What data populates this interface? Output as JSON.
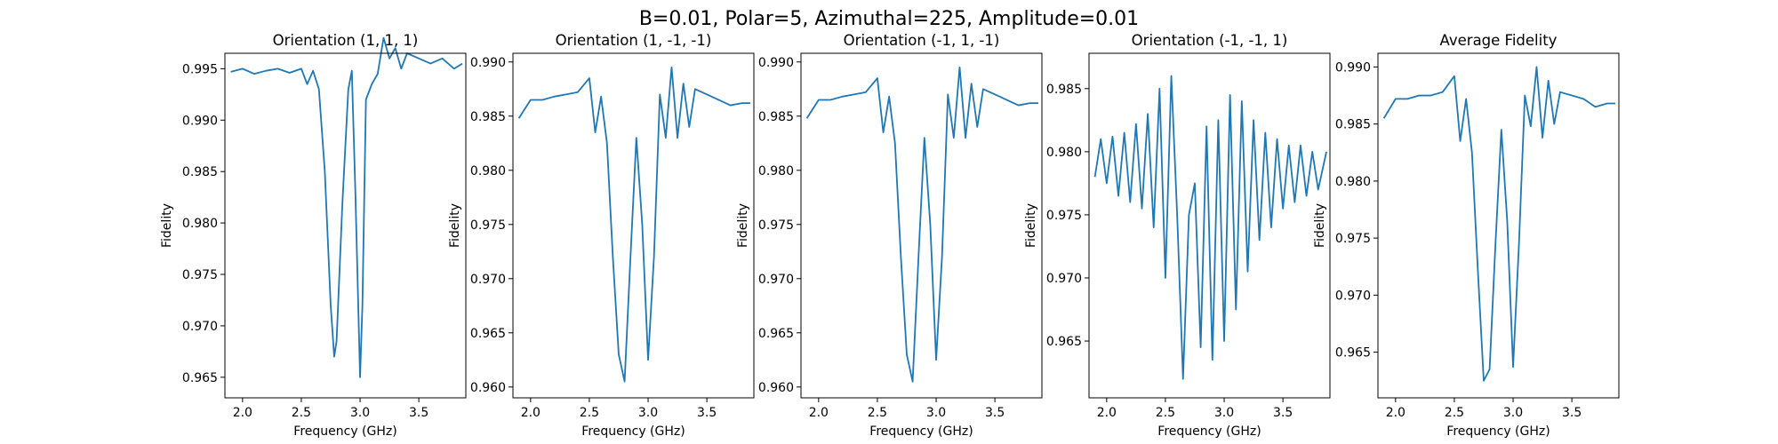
{
  "figure": {
    "title": "B=0.01, Polar=5, Azimuthal=225, Amplitude=0.01"
  },
  "colors": {
    "line": "#1f77b4",
    "axes": "#000000",
    "background": "#ffffff"
  },
  "chart_data": [
    {
      "type": "line",
      "title": "Orientation (1, 1, 1)",
      "xlabel": "Frequency (GHz)",
      "ylabel": "Fidelity",
      "xlim": [
        1.85,
        3.9
      ],
      "ylim": [
        0.963,
        0.9965
      ],
      "xticks": [
        2.0,
        2.5,
        3.0,
        3.5
      ],
      "xtick_labels": [
        "2.0",
        "2.5",
        "3.0",
        "3.5"
      ],
      "yticks": [
        0.965,
        0.97,
        0.975,
        0.98,
        0.985,
        0.99,
        0.995
      ],
      "ytick_labels": [
        "0.965",
        "0.970",
        "0.975",
        "0.980",
        "0.985",
        "0.990",
        "0.995"
      ],
      "grid": false,
      "series": [
        {
          "x": [
            1.9,
            2.0,
            2.1,
            2.2,
            2.3,
            2.4,
            2.5,
            2.55,
            2.6,
            2.65,
            2.7,
            2.75,
            2.78,
            2.8,
            2.85,
            2.9,
            2.93,
            2.96,
            3.0,
            3.02,
            3.05,
            3.1,
            3.15,
            3.2,
            3.25,
            3.3,
            3.35,
            3.4,
            3.5,
            3.6,
            3.7,
            3.8,
            3.87
          ],
          "y": [
            0.9947,
            0.995,
            0.9945,
            0.9948,
            0.995,
            0.9946,
            0.995,
            0.9935,
            0.9948,
            0.993,
            0.985,
            0.972,
            0.967,
            0.9685,
            0.982,
            0.993,
            0.9948,
            0.983,
            0.965,
            0.972,
            0.992,
            0.9935,
            0.9945,
            0.998,
            0.996,
            0.997,
            0.995,
            0.9965,
            0.996,
            0.9955,
            0.996,
            0.995,
            0.9955
          ]
        }
      ]
    },
    {
      "type": "line",
      "title": "Orientation (1, -1, -1)",
      "xlabel": "Frequency (GHz)",
      "ylabel": "Fidelity",
      "xlim": [
        1.85,
        3.9
      ],
      "ylim": [
        0.959,
        0.9908
      ],
      "xticks": [
        2.0,
        2.5,
        3.0,
        3.5
      ],
      "xtick_labels": [
        "2.0",
        "2.5",
        "3.0",
        "3.5"
      ],
      "yticks": [
        0.96,
        0.965,
        0.97,
        0.975,
        0.98,
        0.985,
        0.99
      ],
      "ytick_labels": [
        "0.960",
        "0.965",
        "0.970",
        "0.975",
        "0.980",
        "0.985",
        "0.990"
      ],
      "grid": false,
      "series": [
        {
          "x": [
            1.9,
            2.0,
            2.1,
            2.2,
            2.3,
            2.4,
            2.5,
            2.55,
            2.6,
            2.65,
            2.7,
            2.75,
            2.8,
            2.85,
            2.9,
            2.95,
            3.0,
            3.05,
            3.1,
            3.15,
            3.2,
            3.25,
            3.3,
            3.35,
            3.4,
            3.5,
            3.6,
            3.7,
            3.8,
            3.87
          ],
          "y": [
            0.9848,
            0.9865,
            0.9865,
            0.9868,
            0.987,
            0.9872,
            0.9885,
            0.9835,
            0.9868,
            0.9825,
            0.972,
            0.963,
            0.9605,
            0.972,
            0.983,
            0.975,
            0.9625,
            0.972,
            0.987,
            0.983,
            0.9895,
            0.983,
            0.988,
            0.984,
            0.9875,
            0.987,
            0.9865,
            0.986,
            0.9862,
            0.9862
          ]
        }
      ]
    },
    {
      "type": "line",
      "title": "Orientation (-1, 1, -1)",
      "xlabel": "Frequency (GHz)",
      "ylabel": "Fidelity",
      "xlim": [
        1.85,
        3.9
      ],
      "ylim": [
        0.959,
        0.9908
      ],
      "xticks": [
        2.0,
        2.5,
        3.0,
        3.5
      ],
      "xtick_labels": [
        "2.0",
        "2.5",
        "3.0",
        "3.5"
      ],
      "yticks": [
        0.96,
        0.965,
        0.97,
        0.975,
        0.98,
        0.985,
        0.99
      ],
      "ytick_labels": [
        "0.960",
        "0.965",
        "0.970",
        "0.975",
        "0.980",
        "0.985",
        "0.990"
      ],
      "grid": false,
      "series": [
        {
          "x": [
            1.9,
            2.0,
            2.1,
            2.2,
            2.3,
            2.4,
            2.5,
            2.55,
            2.6,
            2.65,
            2.7,
            2.75,
            2.8,
            2.85,
            2.9,
            2.95,
            3.0,
            3.05,
            3.1,
            3.15,
            3.2,
            3.25,
            3.3,
            3.35,
            3.4,
            3.5,
            3.6,
            3.7,
            3.8,
            3.87
          ],
          "y": [
            0.9848,
            0.9865,
            0.9865,
            0.9868,
            0.987,
            0.9872,
            0.9885,
            0.9835,
            0.9868,
            0.9825,
            0.972,
            0.963,
            0.9605,
            0.972,
            0.983,
            0.975,
            0.9625,
            0.972,
            0.987,
            0.983,
            0.9895,
            0.983,
            0.988,
            0.984,
            0.9875,
            0.987,
            0.9865,
            0.986,
            0.9862,
            0.9862
          ]
        }
      ]
    },
    {
      "type": "line",
      "title": "Orientation (-1, -1, 1)",
      "xlabel": "Frequency (GHz)",
      "ylabel": "Fidelity",
      "xlim": [
        1.85,
        3.9
      ],
      "ylim": [
        0.9605,
        0.9878
      ],
      "xticks": [
        2.0,
        2.5,
        3.0,
        3.5
      ],
      "xtick_labels": [
        "2.0",
        "2.5",
        "3.0",
        "3.5"
      ],
      "yticks": [
        0.965,
        0.97,
        0.975,
        0.98,
        0.985
      ],
      "ytick_labels": [
        "0.965",
        "0.970",
        "0.975",
        "0.980",
        "0.985"
      ],
      "grid": false,
      "series": [
        {
          "x": [
            1.9,
            1.95,
            2.0,
            2.05,
            2.1,
            2.15,
            2.2,
            2.25,
            2.3,
            2.35,
            2.4,
            2.45,
            2.5,
            2.55,
            2.6,
            2.65,
            2.7,
            2.75,
            2.8,
            2.85,
            2.9,
            2.95,
            3.0,
            3.05,
            3.1,
            3.15,
            3.2,
            3.25,
            3.3,
            3.35,
            3.4,
            3.45,
            3.5,
            3.55,
            3.6,
            3.65,
            3.7,
            3.75,
            3.8,
            3.87
          ],
          "y": [
            0.978,
            0.981,
            0.9775,
            0.9812,
            0.9765,
            0.9815,
            0.976,
            0.9822,
            0.9755,
            0.983,
            0.974,
            0.985,
            0.97,
            0.986,
            0.975,
            0.962,
            0.975,
            0.9775,
            0.9645,
            0.982,
            0.9635,
            0.9825,
            0.965,
            0.9845,
            0.9675,
            0.984,
            0.9705,
            0.9825,
            0.973,
            0.9815,
            0.974,
            0.981,
            0.9755,
            0.9805,
            0.976,
            0.9805,
            0.9765,
            0.98,
            0.977,
            0.98
          ]
        }
      ]
    },
    {
      "type": "line",
      "title": "Average Fidelity",
      "xlabel": "Frequency (GHz)",
      "ylabel": "Fidelity",
      "xlim": [
        1.85,
        3.9
      ],
      "ylim": [
        0.961,
        0.9912
      ],
      "xticks": [
        2.0,
        2.5,
        3.0,
        3.5
      ],
      "xtick_labels": [
        "2.0",
        "2.5",
        "3.0",
        "3.5"
      ],
      "yticks": [
        0.965,
        0.97,
        0.975,
        0.98,
        0.985,
        0.99
      ],
      "ytick_labels": [
        "0.965",
        "0.970",
        "0.975",
        "0.980",
        "0.985",
        "0.990"
      ],
      "grid": false,
      "series": [
        {
          "x": [
            1.9,
            2.0,
            2.1,
            2.2,
            2.3,
            2.4,
            2.5,
            2.55,
            2.6,
            2.65,
            2.7,
            2.75,
            2.8,
            2.85,
            2.9,
            2.95,
            3.0,
            3.05,
            3.1,
            3.15,
            3.2,
            3.25,
            3.3,
            3.35,
            3.4,
            3.5,
            3.6,
            3.7,
            3.8,
            3.87
          ],
          "y": [
            0.9855,
            0.9872,
            0.9872,
            0.9875,
            0.9875,
            0.9878,
            0.9892,
            0.9835,
            0.9872,
            0.9825,
            0.9722,
            0.9625,
            0.9635,
            0.9745,
            0.9845,
            0.9765,
            0.9637,
            0.9745,
            0.9875,
            0.9848,
            0.99,
            0.9838,
            0.9888,
            0.985,
            0.9878,
            0.9875,
            0.9872,
            0.9865,
            0.9868,
            0.9868
          ]
        }
      ]
    }
  ]
}
